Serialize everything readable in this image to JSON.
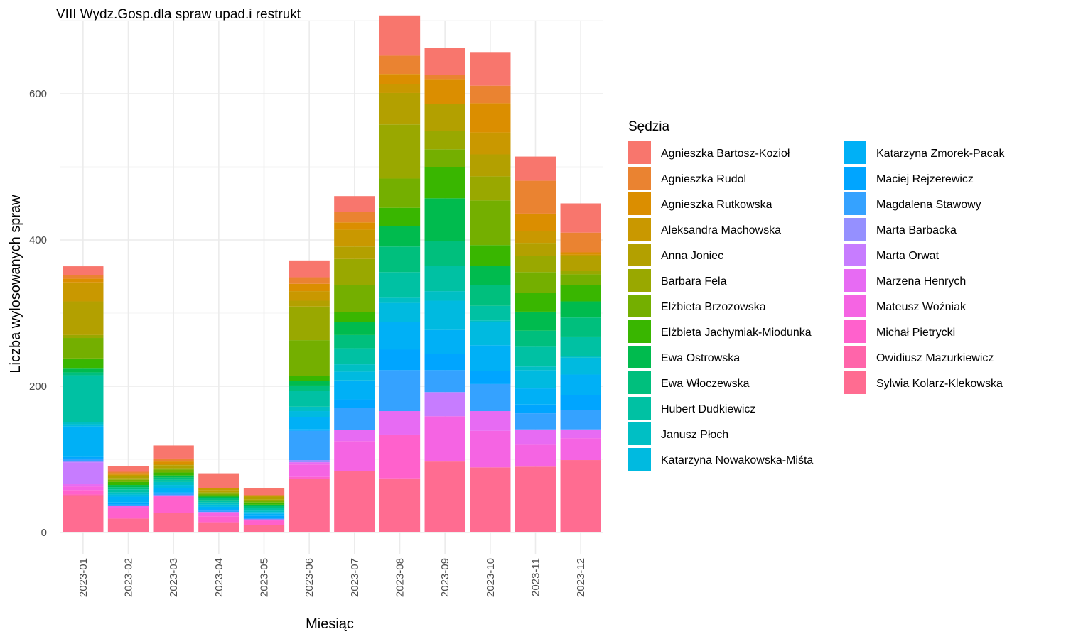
{
  "chart_data": {
    "type": "bar",
    "stacked": true,
    "title": "VIII Wydz.Gosp.dla spraw upad.i restrukt",
    "xlabel": "Miesiąc",
    "ylabel": "Liczba wylosowanych spraw",
    "ylim": [
      0,
      700
    ],
    "yticks": [
      0,
      200,
      400,
      600
    ],
    "grid": true,
    "legend_title": "Sędzia",
    "legend_position": "right",
    "categories": [
      "2023-01",
      "2023-02",
      "2023-03",
      "2023-04",
      "2023-05",
      "2023-06",
      "2023-07",
      "2023-08",
      "2023-09",
      "2023-10",
      "2023-11",
      "2023-12"
    ],
    "series": [
      {
        "name": "Agnieszka Bartosz-Kozioł",
        "color": "#F8766D",
        "values": [
          12,
          8,
          18,
          20,
          10,
          23,
          22,
          55,
          37,
          46,
          33,
          40
        ]
      },
      {
        "name": "Agnieszka Rudol",
        "color": "#EA8331",
        "values": [
          5,
          2,
          4,
          0,
          0,
          9,
          14,
          25,
          6,
          24,
          45,
          27
        ]
      },
      {
        "name": "Agnieszka Rutkowska",
        "color": "#DB8E00",
        "values": [
          5,
          2,
          3,
          0,
          0,
          10,
          10,
          14,
          34,
          40,
          24,
          3
        ]
      },
      {
        "name": "Aleksandra Machowska",
        "color": "#C99800",
        "values": [
          26,
          2,
          2,
          3,
          2,
          13,
          23,
          12,
          0,
          30,
          16,
          2
        ]
      },
      {
        "name": "Anna Joniec",
        "color": "#B3A000",
        "values": [
          46,
          3,
          4,
          3,
          4,
          8,
          17,
          43,
          37,
          30,
          18,
          20
        ]
      },
      {
        "name": "Barbara Fela",
        "color": "#99A800",
        "values": [
          4,
          2,
          2,
          2,
          2,
          46,
          36,
          74,
          25,
          33,
          22,
          5
        ]
      },
      {
        "name": "Elżbieta Brzozowska",
        "color": "#74AF00",
        "values": [
          28,
          3,
          4,
          2,
          2,
          49,
          37,
          40,
          24,
          61,
          28,
          15
        ]
      },
      {
        "name": "Elżbieta Jachymiak-Miodunka",
        "color": "#39B600",
        "values": [
          14,
          4,
          4,
          2,
          3,
          7,
          13,
          25,
          43,
          28,
          26,
          22
        ]
      },
      {
        "name": "Ewa Ostrowska",
        "color": "#00BB4E",
        "values": [
          5,
          3,
          3,
          2,
          2,
          6,
          18,
          28,
          58,
          27,
          26,
          22
        ]
      },
      {
        "name": "Ewa Włoczewska",
        "color": "#00BF7D",
        "values": [
          4,
          3,
          3,
          3,
          3,
          7,
          18,
          35,
          34,
          28,
          22,
          26
        ]
      },
      {
        "name": "Hubert Dudkiewicz",
        "color": "#00C1A3",
        "values": [
          64,
          4,
          3,
          3,
          3,
          22,
          22,
          35,
          35,
          20,
          27,
          27
        ]
      },
      {
        "name": "Janusz Płoch",
        "color": "#00BFC4",
        "values": [
          3,
          3,
          4,
          3,
          2,
          6,
          10,
          7,
          13,
          2,
          5,
          2
        ]
      },
      {
        "name": "Katarzyna Nowakowska-Miśta",
        "color": "#00BAE0",
        "values": [
          3,
          3,
          4,
          3,
          2,
          8,
          12,
          26,
          40,
          32,
          25,
          23
        ]
      },
      {
        "name": "Katarzyna Zmorek-Pacak",
        "color": "#00B0F6",
        "values": [
          41,
          8,
          6,
          3,
          3,
          17,
          26,
          38,
          33,
          35,
          22,
          28
        ]
      },
      {
        "name": "Maciej Rejzerewicz",
        "color": "#00A5FF",
        "values": [
          3,
          3,
          2,
          2,
          3,
          2,
          12,
          28,
          22,
          18,
          12,
          21
        ]
      },
      {
        "name": "Magdalena Stawowy",
        "color": "#35A2FF",
        "values": [
          3,
          2,
          2,
          2,
          2,
          40,
          30,
          56,
          30,
          37,
          22,
          26
        ]
      },
      {
        "name": "Marta Barbacka",
        "color": "#9590FF",
        "values": [
          2,
          0,
          0,
          0,
          0,
          3,
          0,
          0,
          0,
          0,
          0,
          0
        ]
      },
      {
        "name": "Marta Orwat",
        "color": "#C77CFF",
        "values": [
          30,
          0,
          1,
          0,
          0,
          0,
          0,
          0,
          33,
          0,
          0,
          0
        ]
      },
      {
        "name": "Marzena Henrych",
        "color": "#E76BF3",
        "values": [
          3,
          0,
          0,
          1,
          0,
          3,
          15,
          32,
          0,
          27,
          21,
          12
        ]
      },
      {
        "name": "Mateusz Woźniak",
        "color": "#F564E3",
        "values": [
          5,
          2,
          1,
          5,
          2,
          17,
          41,
          0,
          62,
          50,
          30,
          30
        ]
      },
      {
        "name": "Michał Pietrycki",
        "color": "#FF61CC",
        "values": [
          6,
          15,
          22,
          8,
          6,
          3,
          0,
          60,
          0,
          0,
          0,
          0
        ]
      },
      {
        "name": "Owidiusz Mazurkiewicz",
        "color": "#FF65AA",
        "values": [
          2,
          0,
          0,
          0,
          0,
          0,
          0,
          0,
          0,
          0,
          0,
          0
        ]
      },
      {
        "name": "Sylwia Kolarz-Klekowska",
        "color": "#FF6C91",
        "values": [
          50,
          19,
          27,
          14,
          10,
          73,
          84,
          74,
          97,
          89,
          90,
          99
        ]
      }
    ]
  }
}
